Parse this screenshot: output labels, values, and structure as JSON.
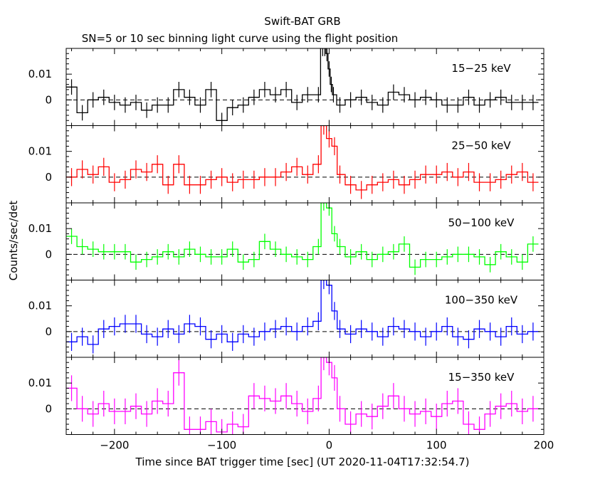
{
  "chart_data": {
    "type": "line",
    "title": "Swift-BAT GRB",
    "subtitle": "SN=5 or 10 sec binning light curve using the flight position",
    "xlabel": "Time since BAT trigger time [sec] (UT 2020-11-04T17:32:54.7)",
    "ylabel": "Counts/sec/det",
    "xlim": [
      -245,
      200
    ],
    "ylim": [
      -0.01,
      0.02
    ],
    "xticks": [
      -200,
      -100,
      0,
      100,
      200
    ],
    "xtick_labels": [
      "−200",
      "−100",
      "0",
      "100",
      "200"
    ],
    "yticks": [
      0,
      0.01
    ],
    "ytick_labels": [
      "0",
      "0.01"
    ],
    "zero_line": "dashed",
    "panels": [
      {
        "name": "15−25 keV",
        "color": "#000000",
        "x": [
          -240,
          -230,
          -220,
          -210,
          -200,
          -190,
          -180,
          -170,
          -160,
          -150,
          -140,
          -130,
          -120,
          -110,
          -100,
          -90,
          -80,
          -70,
          -60,
          -50,
          -40,
          -30,
          -20,
          -10,
          -6,
          -4,
          -2,
          0,
          2,
          4,
          10,
          20,
          30,
          40,
          50,
          60,
          70,
          80,
          90,
          100,
          110,
          120,
          130,
          140,
          150,
          160,
          170,
          180,
          190
        ],
        "y": [
          0.005,
          -0.005,
          0,
          0.001,
          -0.001,
          -0.002,
          -0.001,
          -0.004,
          -0.002,
          -0.002,
          0.004,
          0.001,
          -0.002,
          0.004,
          -0.008,
          -0.003,
          -0.002,
          0.001,
          0.004,
          0.002,
          0.004,
          -0.001,
          0.002,
          0.002,
          0.02,
          0.02,
          0.018,
          0.012,
          0.006,
          0.002,
          -0.002,
          0,
          0.001,
          -0.001,
          -0.002,
          0.003,
          0.002,
          0,
          0.001,
          0,
          -0.002,
          -0.002,
          0.001,
          -0.002,
          0,
          0.001,
          -0.001,
          -0.001,
          -0.001
        ],
        "err": 0.003
      },
      {
        "name": "25−50 keV",
        "color": "#ff0000",
        "x": [
          -240,
          -230,
          -220,
          -210,
          -200,
          -190,
          -180,
          -170,
          -160,
          -150,
          -140,
          -130,
          -120,
          -110,
          -100,
          -90,
          -80,
          -70,
          -60,
          -50,
          -40,
          -30,
          -20,
          -10,
          -5,
          0,
          5,
          10,
          20,
          30,
          40,
          50,
          60,
          70,
          80,
          90,
          100,
          110,
          120,
          130,
          140,
          150,
          160,
          170,
          180,
          190
        ],
        "y": [
          0,
          0.003,
          0.001,
          0.004,
          -0.002,
          -0.001,
          0.003,
          0.002,
          0.005,
          -0.003,
          0.005,
          -0.003,
          -0.003,
          -0.001,
          0,
          -0.002,
          -0.001,
          -0.001,
          0,
          0,
          0.002,
          0.004,
          0.001,
          0.005,
          0.02,
          0.015,
          0.012,
          0.001,
          -0.003,
          -0.005,
          -0.003,
          -0.002,
          -0.001,
          -0.003,
          -0.001,
          0.001,
          0.001,
          0.002,
          0,
          0.002,
          -0.002,
          -0.002,
          -0.001,
          0.001,
          0.002,
          -0.002
        ],
        "err": 0.0035
      },
      {
        "name": "50−100 keV",
        "color": "#00ff00",
        "x": [
          -240,
          -230,
          -220,
          -210,
          -200,
          -190,
          -180,
          -170,
          -160,
          -150,
          -140,
          -130,
          -120,
          -110,
          -100,
          -90,
          -80,
          -70,
          -60,
          -50,
          -40,
          -30,
          -20,
          -10,
          -5,
          0,
          5,
          10,
          20,
          30,
          40,
          50,
          60,
          70,
          80,
          90,
          100,
          110,
          120,
          130,
          140,
          150,
          160,
          170,
          180,
          190
        ],
        "y": [
          0.007,
          0.003,
          0.002,
          0.001,
          0.001,
          0.001,
          -0.003,
          -0.002,
          -0.001,
          0.001,
          -0.001,
          0.002,
          0,
          -0.001,
          -0.001,
          0.002,
          -0.003,
          -0.002,
          0.005,
          0.002,
          0,
          -0.001,
          -0.002,
          0.003,
          0.02,
          0.018,
          0.008,
          0.003,
          -0.001,
          0.001,
          -0.002,
          0,
          0.001,
          0.004,
          -0.005,
          -0.002,
          -0.002,
          -0.001,
          0,
          0,
          -0.001,
          -0.004,
          0.001,
          -0.001,
          -0.003,
          0.004
        ],
        "err": 0.003
      },
      {
        "name": "100−350 keV",
        "color": "#0000ff",
        "x": [
          -240,
          -230,
          -220,
          -210,
          -200,
          -190,
          -180,
          -170,
          -160,
          -150,
          -140,
          -130,
          -120,
          -110,
          -100,
          -90,
          -80,
          -70,
          -60,
          -50,
          -40,
          -30,
          -20,
          -10,
          -5,
          0,
          5,
          10,
          20,
          30,
          40,
          50,
          60,
          70,
          80,
          90,
          100,
          110,
          120,
          130,
          140,
          150,
          160,
          170,
          180,
          190
        ],
        "y": [
          -0.004,
          -0.002,
          -0.005,
          0.001,
          0.002,
          0.003,
          0.003,
          -0.001,
          -0.002,
          0.001,
          -0.001,
          0.003,
          0.002,
          -0.003,
          -0.001,
          -0.004,
          -0.001,
          -0.002,
          0,
          0.001,
          0.002,
          0,
          0.002,
          0.004,
          0.02,
          0.018,
          0.008,
          0.001,
          -0.001,
          0.001,
          0,
          -0.002,
          0.002,
          0.001,
          0,
          -0.002,
          0,
          0.002,
          -0.002,
          -0.003,
          0.001,
          0,
          -0.002,
          0.002,
          -0.001,
          0
        ],
        "err": 0.0035
      },
      {
        "name": "15−350 keV",
        "color": "#ff00ff",
        "x": [
          -240,
          -230,
          -220,
          -210,
          -200,
          -190,
          -180,
          -170,
          -160,
          -150,
          -140,
          -130,
          -120,
          -110,
          -100,
          -90,
          -80,
          -70,
          -60,
          -50,
          -40,
          -30,
          -20,
          -10,
          -5,
          0,
          5,
          10,
          20,
          30,
          40,
          50,
          60,
          70,
          80,
          90,
          100,
          110,
          120,
          130,
          140,
          150,
          160,
          170,
          180,
          190
        ],
        "y": [
          0.008,
          0,
          -0.002,
          0.002,
          -0.001,
          -0.001,
          0.001,
          -0.002,
          0.003,
          0.002,
          0.014,
          -0.008,
          -0.008,
          -0.005,
          -0.009,
          -0.006,
          -0.007,
          0.005,
          0.004,
          0.003,
          0.005,
          0.002,
          -0.001,
          0.004,
          0.02,
          0.018,
          0.012,
          0,
          -0.006,
          -0.002,
          -0.003,
          0.001,
          0.005,
          0,
          -0.002,
          -0.001,
          -0.003,
          0.002,
          0.003,
          -0.006,
          -0.008,
          -0.002,
          0.001,
          0.002,
          -0.001,
          0
        ],
        "err": 0.005
      }
    ]
  }
}
